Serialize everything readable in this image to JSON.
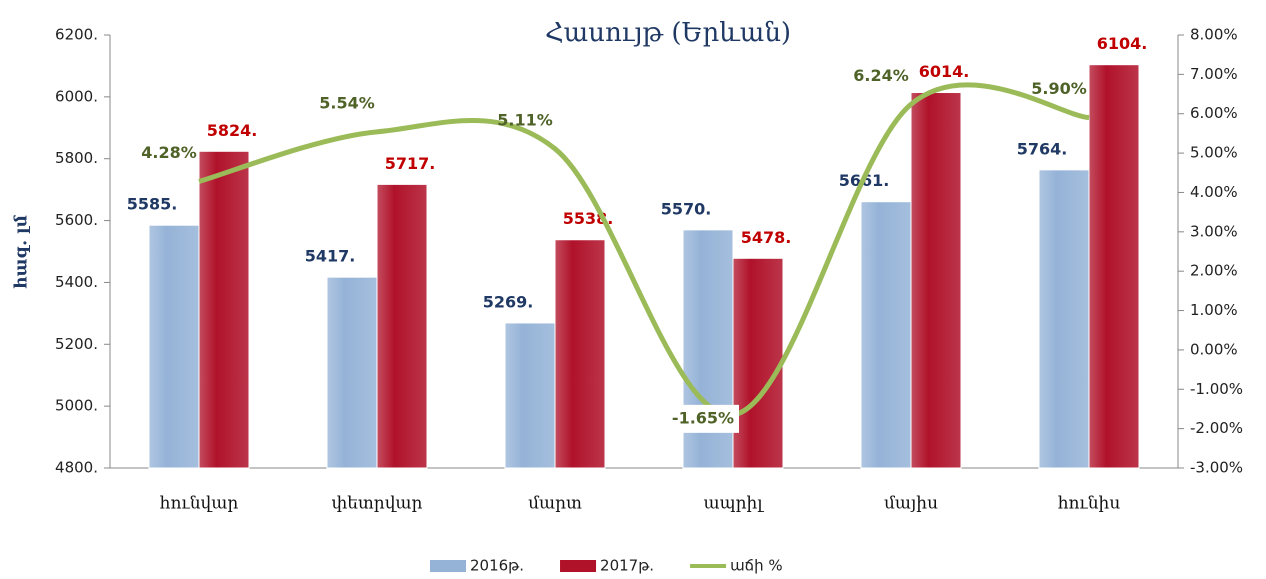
{
  "chart_data": {
    "type": "bar-line",
    "title": "Հասույթ (Երևան)",
    "y_label": "հազ. լմ",
    "categories": [
      "հունվար",
      "փետրվար",
      "մարտ",
      "ապրիլ",
      "մայիս",
      "հունիս"
    ],
    "ylim": [
      4800,
      6200
    ],
    "yticks": [
      {
        "value": 4800,
        "label": "4800."
      },
      {
        "value": 5000,
        "label": "5000."
      },
      {
        "value": 5200,
        "label": "5200."
      },
      {
        "value": 5400,
        "label": "5400."
      },
      {
        "value": 5600,
        "label": "5600."
      },
      {
        "value": 5800,
        "label": "5800."
      },
      {
        "value": 6000,
        "label": "6000."
      },
      {
        "value": 6200,
        "label": "6200."
      }
    ],
    "y2lim": [
      -3,
      8
    ],
    "y2ticks": [
      {
        "value": -3,
        "label": "-3.00%"
      },
      {
        "value": -2,
        "label": "-2.00%"
      },
      {
        "value": -1,
        "label": "-1.00%"
      },
      {
        "value": 0,
        "label": "0.00%"
      },
      {
        "value": 1,
        "label": "1.00%"
      },
      {
        "value": 2,
        "label": "2.00%"
      },
      {
        "value": 3,
        "label": "3.00%"
      },
      {
        "value": 4,
        "label": "4.00%"
      },
      {
        "value": 5,
        "label": "5.00%"
      },
      {
        "value": 6,
        "label": "6.00%"
      },
      {
        "value": 7,
        "label": "7.00%"
      },
      {
        "value": 8,
        "label": "8.00%"
      }
    ],
    "series": [
      {
        "name": "2016թ.",
        "type": "bar",
        "color": "#95b3d7",
        "label_color": "#1f3864",
        "values": [
          5585,
          5417,
          5269,
          5570,
          5661,
          5764
        ],
        "value_labels": [
          "5585.",
          "5417.",
          "5269.",
          "5570.",
          "5661.",
          "5764."
        ]
      },
      {
        "name": "2017թ.",
        "type": "bar",
        "color": "#b0122a",
        "label_color": "#c00000",
        "values": [
          5824,
          5717,
          5538,
          5478,
          6014,
          6104
        ],
        "value_labels": [
          "5824.",
          "5717.",
          "5538.",
          "5478.",
          "6014.",
          "6104."
        ]
      },
      {
        "name": "աճի %",
        "type": "line",
        "axis": "y2",
        "color": "#9bbb59",
        "label_color": "#4f6228",
        "values": [
          4.28,
          5.54,
          5.11,
          -1.65,
          6.24,
          5.9
        ],
        "value_labels": [
          "4.28%",
          "5.54%",
          "5.11%",
          "-1.65%",
          "6.24%",
          "5.90%"
        ]
      }
    ],
    "legend": "bottom"
  }
}
